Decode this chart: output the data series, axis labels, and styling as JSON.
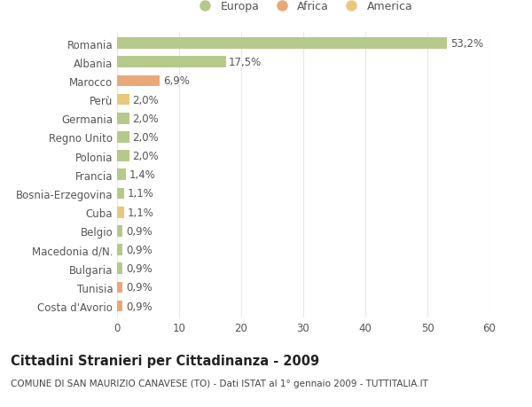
{
  "countries": [
    "Romania",
    "Albania",
    "Marocco",
    "Perù",
    "Germania",
    "Regno Unito",
    "Polonia",
    "Francia",
    "Bosnia-Erzegovina",
    "Cuba",
    "Belgio",
    "Macedonia d/N.",
    "Bulgaria",
    "Tunisia",
    "Costa d'Avorio"
  ],
  "values": [
    53.2,
    17.5,
    6.9,
    2.0,
    2.0,
    2.0,
    2.0,
    1.4,
    1.1,
    1.1,
    0.9,
    0.9,
    0.9,
    0.9,
    0.9
  ],
  "labels": [
    "53,2%",
    "17,5%",
    "6,9%",
    "2,0%",
    "2,0%",
    "2,0%",
    "2,0%",
    "1,4%",
    "1,1%",
    "1,1%",
    "0,9%",
    "0,9%",
    "0,9%",
    "0,9%",
    "0,9%"
  ],
  "colors": [
    "#b5c98a",
    "#b5c98a",
    "#e8a87a",
    "#e8c87a",
    "#b5c98a",
    "#b5c98a",
    "#b5c98a",
    "#b5c98a",
    "#b5c98a",
    "#e8c87a",
    "#b5c98a",
    "#b5c98a",
    "#b5c98a",
    "#e8a87a",
    "#e8a87a"
  ],
  "legend_labels": [
    "Europa",
    "Africa",
    "America"
  ],
  "legend_colors": [
    "#b5c98a",
    "#e8a87a",
    "#e8c87a"
  ],
  "title": "Cittadini Stranieri per Cittadinanza - 2009",
  "subtitle": "COMUNE DI SAN MAURIZIO CANAVESE (TO) - Dati ISTAT al 1° gennaio 2009 - TUTTITALIA.IT",
  "xlim": [
    0,
    60
  ],
  "xticks": [
    0,
    10,
    20,
    30,
    40,
    50,
    60
  ],
  "bg_color": "#ffffff",
  "grid_color": "#e8e8e8",
  "bar_height": 0.6,
  "label_fontsize": 8.5,
  "tick_fontsize": 8.5,
  "title_fontsize": 10.5,
  "subtitle_fontsize": 7.5
}
